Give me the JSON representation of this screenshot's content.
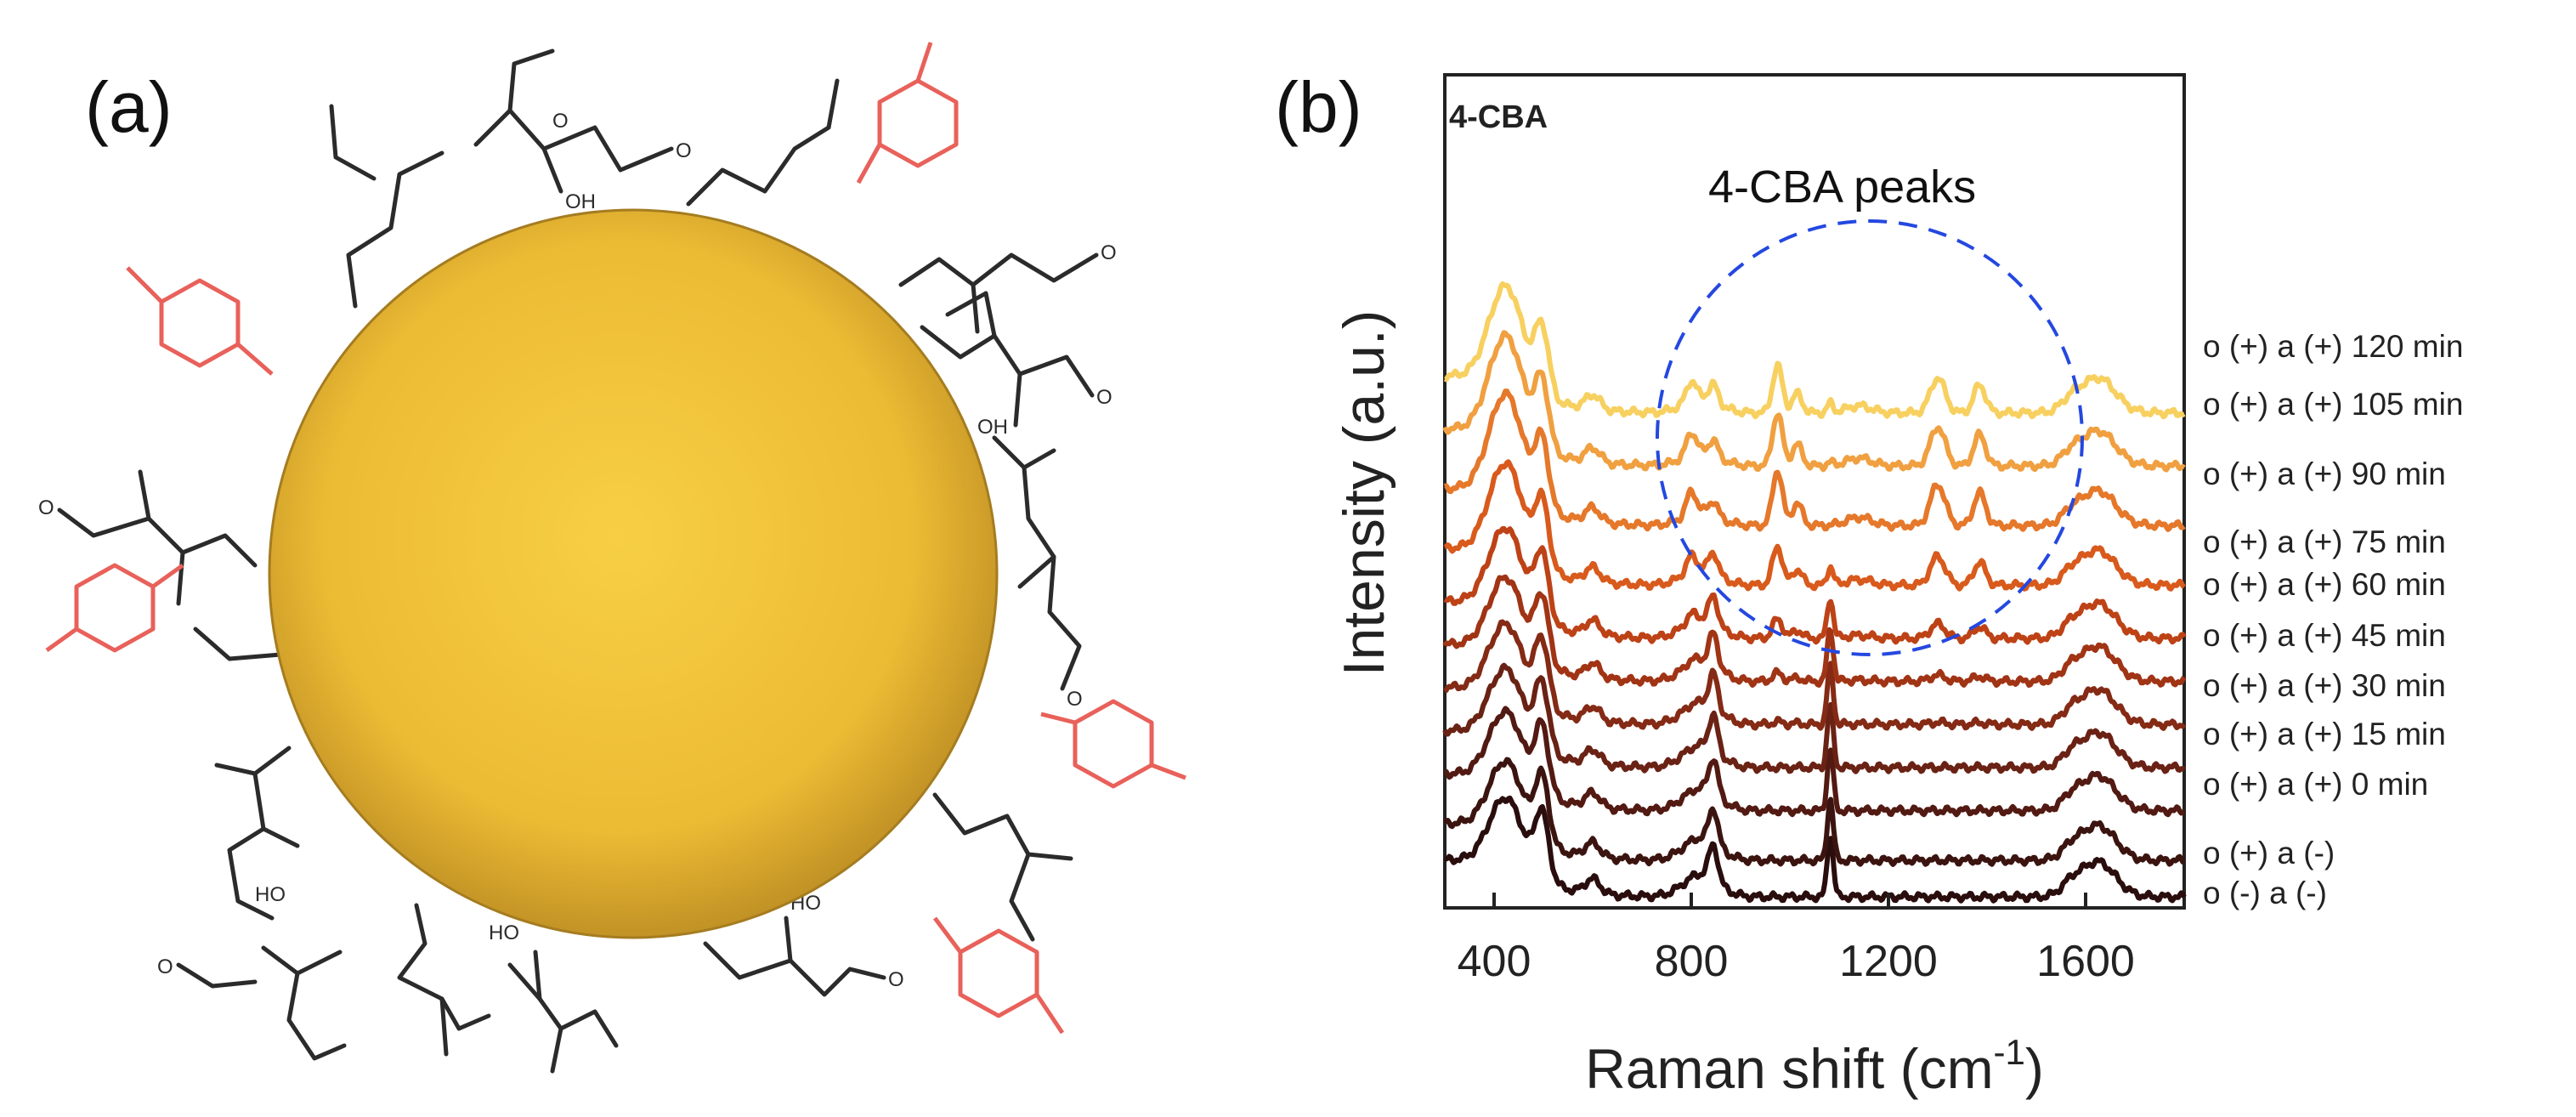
{
  "panel_a": {
    "label": "(a)",
    "chem_labels": [
      "O",
      "O",
      "O",
      "O",
      "O",
      "O",
      "O",
      "O",
      "OH",
      "OH",
      "HO",
      "HO",
      "HO"
    ]
  },
  "panel_b": {
    "label": "(b)"
  },
  "colors": {
    "nanoparticle": "#f2c233",
    "ligand_black": "#2b2b2b",
    "ligand_red": "#e8615a",
    "circle_annotation": "#2448e0"
  },
  "chart_data": {
    "type": "line",
    "title": "4-CBA",
    "xlabel": "Raman shift (cm",
    "xlabel_sup": "-1",
    "xlabel_close": ")",
    "ylabel": "Intensity (a.u.)",
    "xlim": [
      300,
      1800
    ],
    "xticks": [
      400,
      800,
      1200,
      1600
    ],
    "annotation": "4-CBA peaks",
    "series": [
      {
        "name": "o (-) a (-)",
        "color": "#2a0d0d",
        "offset": 0.0,
        "cba": 0.0
      },
      {
        "name": "o (+) a (-)",
        "color": "#3b1410",
        "offset": 0.55,
        "cba": 0.0
      },
      {
        "name": "o (+) a (+) 0 min",
        "color": "#521a12",
        "offset": 1.3,
        "cba": 0.0
      },
      {
        "name": "o (+) a (+) 15 min",
        "color": "#6a2214",
        "offset": 1.95,
        "cba": 0.0
      },
      {
        "name": "o (+) a (+) 30 min",
        "color": "#842a15",
        "offset": 2.6,
        "cba": 0.05
      },
      {
        "name": "o (+) a (+) 45 min",
        "color": "#a03415",
        "offset": 3.25,
        "cba": 0.15
      },
      {
        "name": "o (+) a (+) 60 min",
        "color": "#bd4216",
        "offset": 3.9,
        "cba": 0.35
      },
      {
        "name": "o (+) a (+) 75 min",
        "color": "#d85a1c",
        "offset": 4.7,
        "cba": 0.7
      },
      {
        "name": "o (+) a (+) 90 min",
        "color": "#e5782a",
        "offset": 5.6,
        "cba": 1.0
      },
      {
        "name": "o (+) a (+) 105 min",
        "color": "#f0a040",
        "offset": 6.5,
        "cba": 0.95
      },
      {
        "name": "o (+) a (+) 120 min",
        "color": "#f7d060",
        "offset": 7.3,
        "cba": 0.85
      }
    ]
  }
}
